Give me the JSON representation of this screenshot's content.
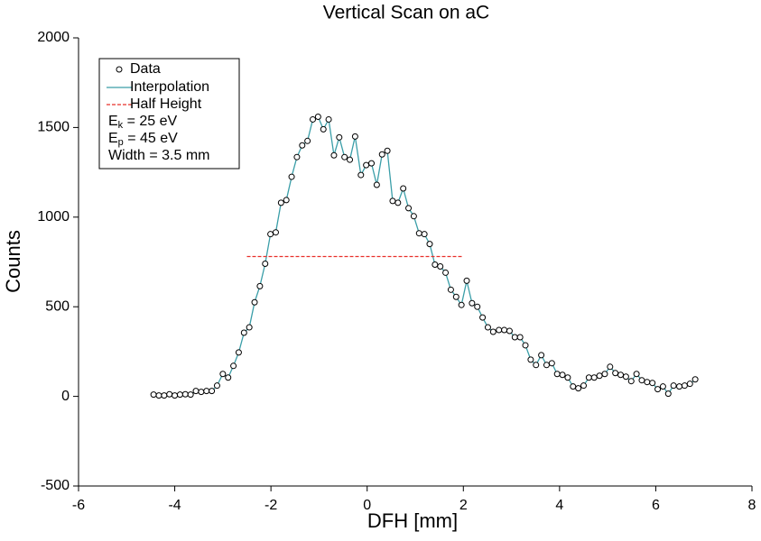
{
  "chart_data": {
    "type": "scatter",
    "title": "Vertical Scan on aC",
    "xlabel": "DFH [mm]",
    "ylabel": "Counts",
    "x": [
      -4.44,
      -4.33,
      -4.22,
      -4.11,
      -4.0,
      -3.89,
      -3.78,
      -3.67,
      -3.56,
      -3.45,
      -3.34,
      -3.23,
      -3.12,
      -3.0,
      -2.89,
      -2.78,
      -2.67,
      -2.56,
      -2.45,
      -2.34,
      -2.23,
      -2.12,
      -2.01,
      -1.9,
      -1.79,
      -1.68,
      -1.57,
      -1.46,
      -1.35,
      -1.24,
      -1.13,
      -1.02,
      -0.91,
      -0.8,
      -0.69,
      -0.58,
      -0.47,
      -0.36,
      -0.25,
      -0.13,
      -0.02,
      0.09,
      0.2,
      0.31,
      0.42,
      0.53,
      0.64,
      0.75,
      0.86,
      0.97,
      1.08,
      1.19,
      1.3,
      1.41,
      1.52,
      1.63,
      1.74,
      1.85,
      1.96,
      2.07,
      2.18,
      2.29,
      2.4,
      2.51,
      2.62,
      2.74,
      2.85,
      2.96,
      3.07,
      3.18,
      3.29,
      3.4,
      3.51,
      3.62,
      3.73,
      3.84,
      3.95,
      4.06,
      4.17,
      4.28,
      4.39,
      4.5,
      4.61,
      4.72,
      4.83,
      4.94,
      5.05,
      5.16,
      5.27,
      5.38,
      5.49,
      5.6,
      5.71,
      5.82,
      5.93,
      6.04,
      6.15,
      6.26,
      6.37,
      6.49,
      6.6,
      6.71,
      6.82
    ],
    "series": [
      {
        "name": "Data",
        "color": "#000000",
        "marker": "circle",
        "values": [
          10,
          5,
          5,
          12,
          5,
          10,
          12,
          10,
          30,
          25,
          30,
          30,
          60,
          125,
          105,
          170,
          245,
          355,
          385,
          525,
          615,
          740,
          905,
          915,
          1080,
          1095,
          1225,
          1335,
          1400,
          1425,
          1545,
          1560,
          1490,
          1545,
          1345,
          1445,
          1335,
          1320,
          1450,
          1235,
          1290,
          1300,
          1180,
          1350,
          1370,
          1090,
          1080,
          1160,
          1050,
          1005,
          910,
          905,
          850,
          735,
          725,
          690,
          595,
          555,
          510,
          645,
          520,
          500,
          440,
          385,
          360,
          370,
          370,
          365,
          330,
          330,
          285,
          205,
          175,
          230,
          175,
          185,
          125,
          120,
          105,
          55,
          45,
          60,
          105,
          105,
          115,
          125,
          165,
          130,
          120,
          110,
          85,
          125,
          90,
          80,
          75,
          40,
          55,
          15,
          60,
          55,
          60,
          70,
          95
        ]
      }
    ],
    "interpolation": {
      "name": "Interpolation",
      "color": "#3a9ea8"
    },
    "half_height": {
      "name": "Half Height",
      "color": "#e8302a",
      "x": [
        -2.5,
        2.0
      ],
      "values": [
        780,
        780
      ]
    },
    "annotations": [
      {
        "symbol": "E",
        "subscript": "k",
        "text": " = 25 eV"
      },
      {
        "symbol": "E",
        "subscript": "p",
        "text": " = 45 eV"
      },
      {
        "text": "Width = 3.5 mm"
      }
    ],
    "xlim": [
      -6,
      8
    ],
    "xticks": [
      -6,
      -4,
      -2,
      0,
      2,
      4,
      6,
      8
    ],
    "ylim": [
      -500,
      2000
    ],
    "yticks": [
      -500,
      0,
      500,
      1000,
      1500,
      2000
    ],
    "legend": "upper-left"
  }
}
